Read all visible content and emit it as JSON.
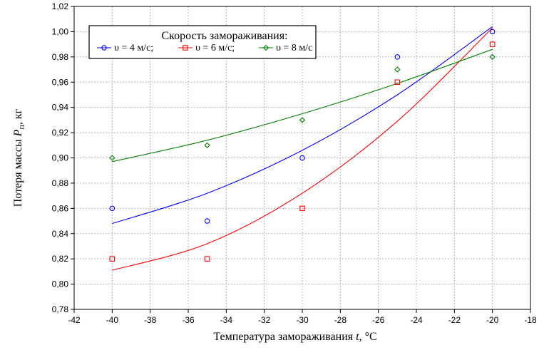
{
  "chart_data": {
    "type": "scatter",
    "title": "",
    "xlabel": "Температура замораживания",
    "xlabel_symbol": "t",
    "xlabel_unit": ", °C",
    "ylabel": "Потеря массы",
    "ylabel_symbol": "P",
    "ylabel_subscript": "п",
    "ylabel_unit": ", кг",
    "xlim": [
      -42,
      -18
    ],
    "ylim": [
      0.78,
      1.02
    ],
    "xticks": [
      -42,
      -40,
      -38,
      -36,
      -34,
      -32,
      -30,
      -28,
      -26,
      -24,
      -22,
      -20,
      -18
    ],
    "xtick_labels": [
      "-42",
      "-40",
      "-38",
      "-36",
      "-34",
      "-32",
      "-30",
      "-28",
      "-26",
      "-24",
      "-22",
      "-20",
      "-18"
    ],
    "yticks": [
      0.78,
      0.8,
      0.82,
      0.84,
      0.86,
      0.88,
      0.9,
      0.92,
      0.94,
      0.96,
      0.98,
      1.0,
      1.02
    ],
    "ytick_labels": [
      "0,78",
      "0,80",
      "0,82",
      "0,84",
      "0,86",
      "0,88",
      "0,90",
      "0,92",
      "0,94",
      "0,96",
      "0,98",
      "1,00",
      "1,02"
    ],
    "grid": true,
    "legend": {
      "title": "Скорость замораживания:",
      "placement": "top-left"
    },
    "series": [
      {
        "name": "υ = 4 м/с;",
        "color": "#0000ff",
        "marker": "circle",
        "points": [
          [
            -40,
            0.86
          ],
          [
            -35,
            0.85
          ],
          [
            -30,
            0.9
          ],
          [
            -25,
            0.98
          ],
          [
            -20,
            1.0
          ]
        ],
        "fit": [
          [
            -40,
            0.848
          ],
          [
            -35,
            0.872
          ],
          [
            -30,
            0.906
          ],
          [
            -25,
            0.95
          ],
          [
            -20,
            1.004
          ]
        ]
      },
      {
        "name": "υ = 6 м/с;",
        "color": "#ff0000",
        "marker": "square",
        "points": [
          [
            -40,
            0.82
          ],
          [
            -35,
            0.82
          ],
          [
            -30,
            0.86
          ],
          [
            -25,
            0.96
          ],
          [
            -20,
            0.99
          ]
        ],
        "fit": [
          [
            -40,
            0.811
          ],
          [
            -35,
            0.832
          ],
          [
            -30,
            0.872
          ],
          [
            -25,
            0.929
          ],
          [
            -20,
            1.003
          ]
        ]
      },
      {
        "name": "υ = 8 м/с",
        "color": "#008000",
        "marker": "diamond",
        "points": [
          [
            -40,
            0.9
          ],
          [
            -35,
            0.91
          ],
          [
            -30,
            0.93
          ],
          [
            -25,
            0.97
          ],
          [
            -20,
            0.98
          ]
        ],
        "fit": [
          [
            -40,
            0.897
          ],
          [
            -35,
            0.914
          ],
          [
            -30,
            0.935
          ],
          [
            -25,
            0.959
          ],
          [
            -20,
            0.986
          ]
        ]
      }
    ]
  }
}
